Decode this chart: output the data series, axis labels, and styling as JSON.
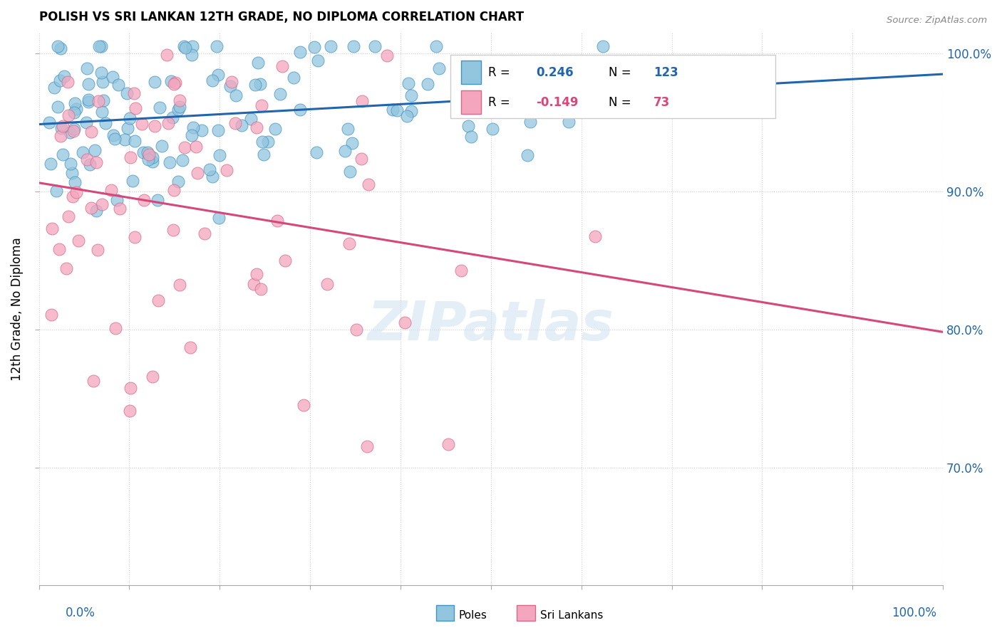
{
  "title": "POLISH VS SRI LANKAN 12TH GRADE, NO DIPLOMA CORRELATION CHART",
  "source_text": "Source: ZipAtlas.com",
  "ylabel": "12th Grade, No Diploma",
  "xrange": [
    0.0,
    1.0
  ],
  "yrange": [
    0.615,
    1.015
  ],
  "blue_R": 0.246,
  "blue_N": 123,
  "pink_R": -0.149,
  "pink_N": 73,
  "blue_color": "#92c5de",
  "pink_color": "#f4a6be",
  "blue_edge_color": "#4393c3",
  "pink_edge_color": "#d6698a",
  "blue_line_color": "#2166ac",
  "pink_line_color": "#d6477a",
  "legend_label_blue": "Poles",
  "legend_label_pink": "Sri Lankans",
  "watermark": "ZIPatlas",
  "blue_seed": 101,
  "pink_seed": 202,
  "yticks": [
    0.7,
    0.8,
    0.9,
    1.0
  ],
  "ytick_labels": [
    "70.0%",
    "80.0%",
    "90.0%",
    "100.0%"
  ]
}
